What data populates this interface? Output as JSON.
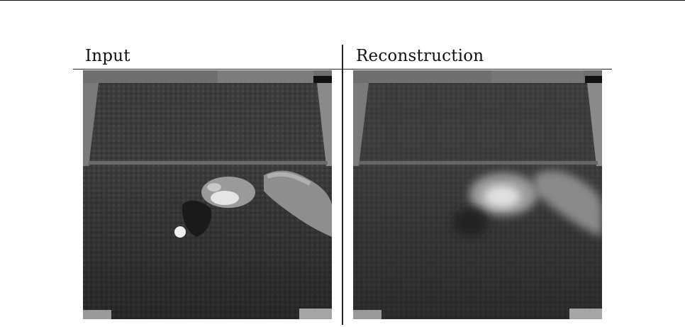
{
  "figure": {
    "columns": [
      {
        "label": "Input"
      },
      {
        "label": "Reconstruction"
      }
    ]
  }
}
